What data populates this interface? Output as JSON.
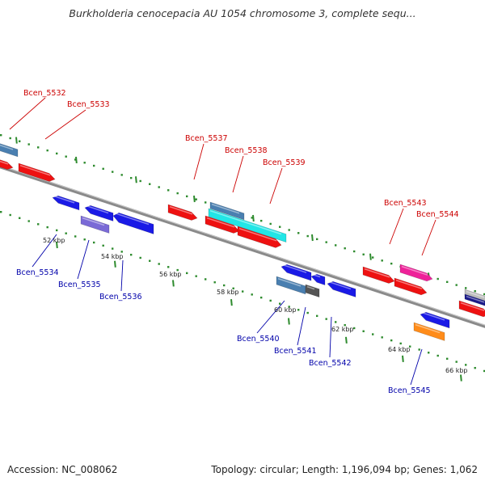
{
  "title": "Burkholderia cenocepacia AU 1054 chromosome 3, complete sequ...",
  "footer": {
    "accession": "Accession: NC_008062",
    "topology": "Topology: circular; Length: 1,196,094 bp; Genes: 1,062"
  },
  "colors": {
    "backbone": "#8a8a8a",
    "outer_dots": "#2e8b2e",
    "forward_label": "#cc0000",
    "reverse_label": "#0000aa",
    "red_gene": "#ee1111",
    "blue_gene": "#1a1ae6",
    "steel_gene": "#4a7fb0",
    "cyan_gene": "#22e6e6",
    "purple_gene": "#7a6ad6",
    "magenta_gene": "#ee2299",
    "gray_gene": "#555555",
    "orange_gene": "#ff8c1a"
  },
  "tick_labels": [
    {
      "label": "52 kbp"
    },
    {
      "label": "54 kbp"
    },
    {
      "label": "56 kbp"
    },
    {
      "label": "58 kbp"
    },
    {
      "label": "60 kbp"
    },
    {
      "label": "62 kbp"
    },
    {
      "label": "64 kbp"
    },
    {
      "label": "66 kbp"
    }
  ],
  "forward_gene_labels": [
    {
      "name": "Bcen_5532"
    },
    {
      "name": "Bcen_5533"
    },
    {
      "name": "Bcen_5537"
    },
    {
      "name": "Bcen_5538"
    },
    {
      "name": "Bcen_5539"
    },
    {
      "name": "Bcen_5543"
    },
    {
      "name": "Bcen_5544"
    }
  ],
  "reverse_gene_labels": [
    {
      "name": "Bcen_5534"
    },
    {
      "name": "Bcen_5535"
    },
    {
      "name": "Bcen_5536"
    },
    {
      "name": "Bcen_5540"
    },
    {
      "name": "Bcen_5541"
    },
    {
      "name": "Bcen_5542"
    },
    {
      "name": "Bcen_5545"
    }
  ]
}
